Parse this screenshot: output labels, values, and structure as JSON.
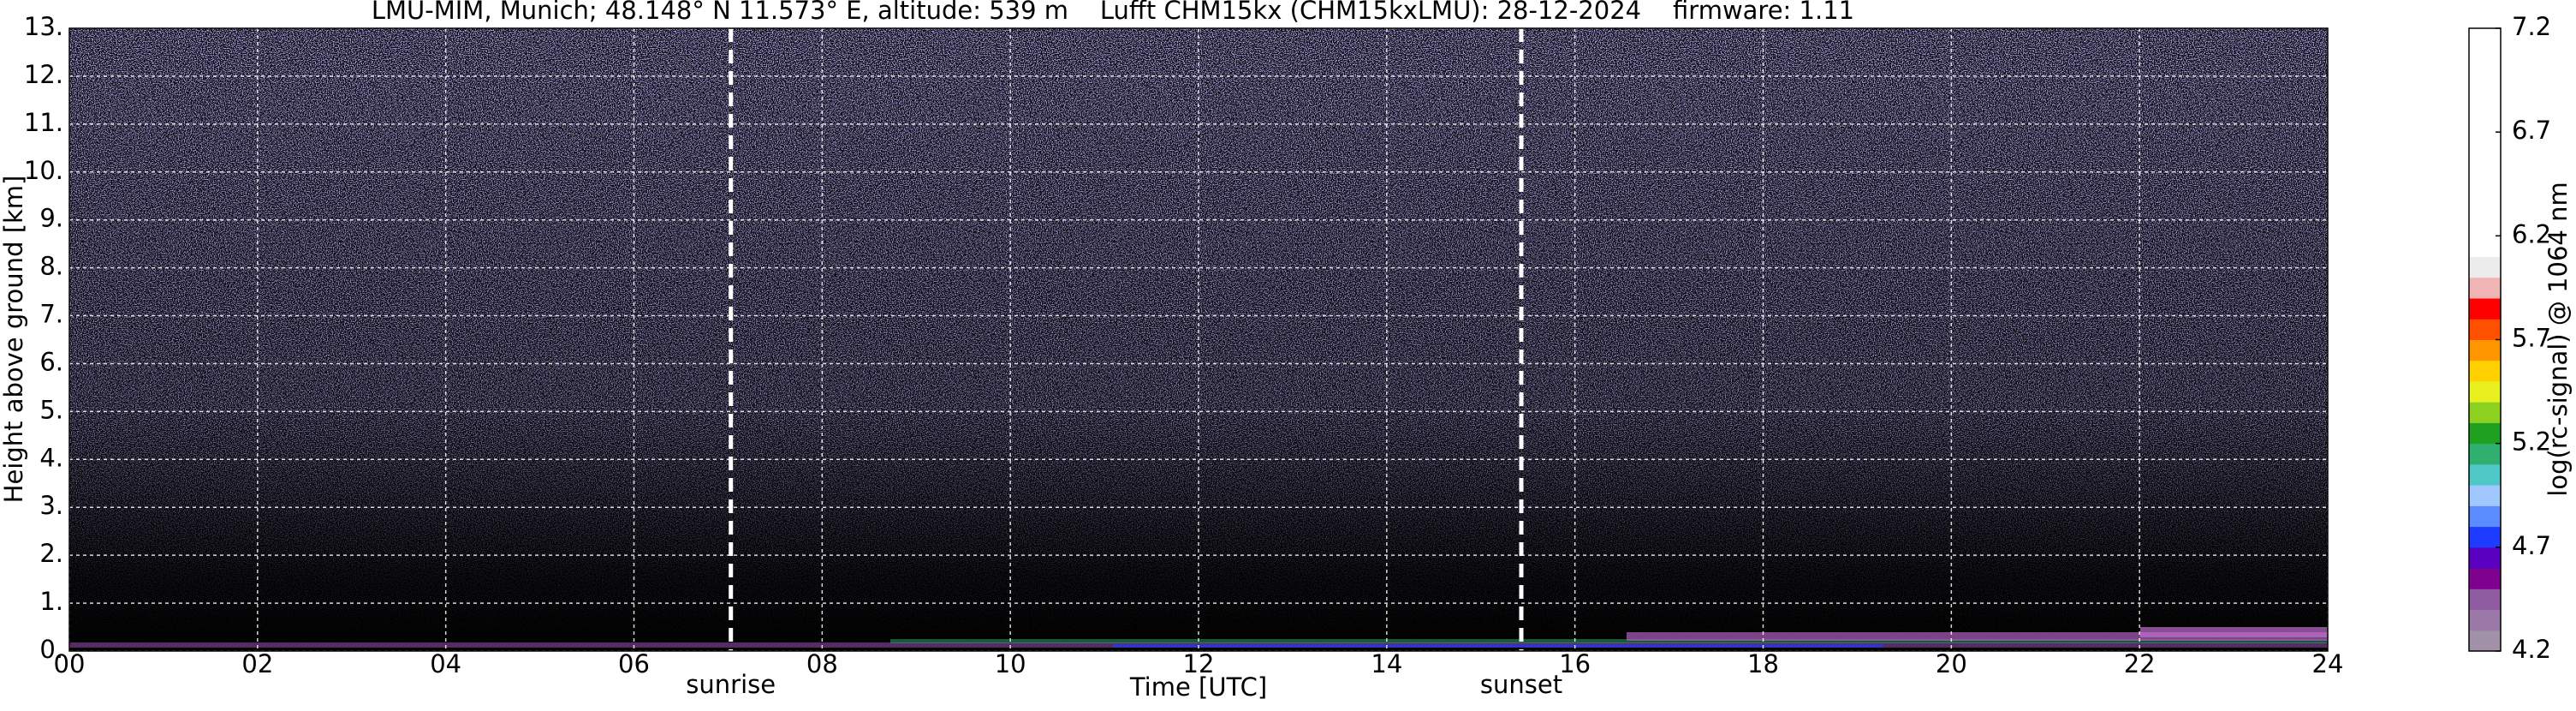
{
  "chart_data": {
    "type": "heatmap",
    "title": "LMU-MIM, Munich; 48.148° N 11.573° E, altitude: 539 m    Lufft CHM15kx (CHM15kxLMU): 28-12-2024    firmware: 1.11",
    "x_label": "Time [UTC]",
    "y_label": "Height above ground [km]",
    "colorbar_label": "log(rc-signal) @ 1064 nm",
    "xlim": [
      0,
      24
    ],
    "xticks": [
      {
        "value": 0,
        "label": "00"
      },
      {
        "value": 2,
        "label": "02"
      },
      {
        "value": 4,
        "label": "04"
      },
      {
        "value": 6,
        "label": "06"
      },
      {
        "value": 8,
        "label": "08"
      },
      10,
      12,
      14,
      16,
      18,
      20,
      22,
      24
    ],
    "ylim": [
      0,
      13
    ],
    "yticks": [
      {
        "value": 0,
        "label": "0."
      },
      {
        "value": 1,
        "label": "1."
      },
      {
        "value": 2,
        "label": "2."
      },
      {
        "value": 3,
        "label": "3."
      },
      {
        "value": 4,
        "label": "4."
      },
      {
        "value": 5,
        "label": "5."
      },
      {
        "value": 6,
        "label": "6."
      },
      {
        "value": 7,
        "label": "7."
      },
      {
        "value": 8,
        "label": "8."
      },
      {
        "value": 9,
        "label": "9."
      },
      {
        "value": 10,
        "label": "10."
      },
      {
        "value": 11,
        "label": "11."
      },
      {
        "value": 12,
        "label": "12."
      },
      {
        "value": 13,
        "label": "13."
      }
    ],
    "clim": [
      4.2,
      7.2
    ],
    "cticks": [
      4.2,
      4.7,
      5.2,
      5.7,
      6.2,
      6.7,
      7.2
    ],
    "colormap": [
      "#a090a8",
      "#9a78a8",
      "#8e5aa0",
      "#800090",
      "#5a00c0",
      "#1e3cff",
      "#5a8cff",
      "#a0c8ff",
      "#50c8c8",
      "#30b070",
      "#20a020",
      "#8cd020",
      "#e8f020",
      "#ffd000",
      "#ff9600",
      "#ff5000",
      "#ff0000",
      "#f0b4b4",
      "#ececec",
      "#ffffff",
      "#ffffff",
      "#ffffff",
      "#ffffff",
      "#ffffff",
      "#ffffff",
      "#ffffff",
      "#ffffff",
      "#ffffff",
      "#ffffff",
      "#ffffff"
    ],
    "grid": true,
    "annotations": [
      {
        "x": 7.03,
        "label": "sunrise"
      },
      {
        "x": 15.43,
        "label": "sunset"
      }
    ]
  }
}
